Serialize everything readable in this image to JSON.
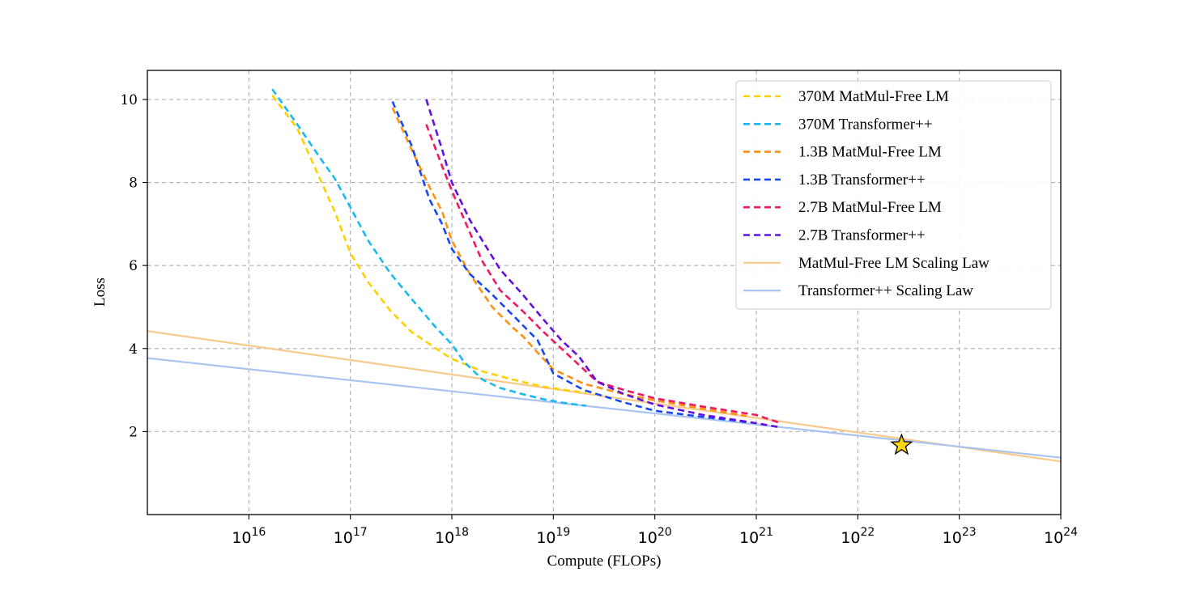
{
  "chart_data": {
    "type": "line",
    "title": "",
    "xlabel": "Compute (FLOPs)",
    "ylabel": "Loss",
    "x_scale": "log",
    "xlim": [
      1000000000000000.0,
      1e+24
    ],
    "ylim": [
      0,
      10.7
    ],
    "grid": true,
    "legend_position": "top-right",
    "x_ticks": [
      {
        "base": "10",
        "exp": "16",
        "value": 1e+16
      },
      {
        "base": "10",
        "exp": "17",
        "value": 1e+17
      },
      {
        "base": "10",
        "exp": "18",
        "value": 1e+18
      },
      {
        "base": "10",
        "exp": "19",
        "value": 1e+19
      },
      {
        "base": "10",
        "exp": "20",
        "value": 1e+20
      },
      {
        "base": "10",
        "exp": "21",
        "value": 1e+21
      },
      {
        "base": "10",
        "exp": "22",
        "value": 1e+22
      },
      {
        "base": "10",
        "exp": "23",
        "value": 1e+23
      },
      {
        "base": "10",
        "exp": "24",
        "value": 1e+24
      }
    ],
    "y_ticks": [
      {
        "label": "2",
        "value": 2
      },
      {
        "label": "4",
        "value": 4
      },
      {
        "label": "6",
        "value": 6
      },
      {
        "label": "8",
        "value": 8
      },
      {
        "label": "10",
        "value": 10
      }
    ],
    "series": [
      {
        "name": "370M MatMul-Free LM",
        "color": "#FFD000",
        "style": "dashed",
        "x": [
          1.7e+16,
          3e+16,
          5e+16,
          7e+16,
          1e+17,
          1.5e+17,
          2.5e+17,
          4e+17,
          7e+17,
          1e+18,
          2e+18,
          4e+18,
          8e+18,
          1.5e+19,
          2.1e+19
        ],
        "y": [
          10.1,
          9.3,
          8.1,
          7.3,
          6.3,
          5.6,
          4.9,
          4.4,
          4.0,
          3.75,
          3.45,
          3.25,
          3.08,
          2.98,
          2.93
        ]
      },
      {
        "name": "370M Transformer++",
        "color": "#1AB8F0",
        "style": "dashed",
        "x": [
          1.7e+16,
          3e+16,
          5e+16,
          7e+16,
          1e+17,
          1.5e+17,
          2.5e+17,
          4e+17,
          7e+17,
          1e+18,
          1.3e+18,
          2e+18,
          3e+18,
          5e+18,
          8e+18,
          1.2e+19,
          2.1e+19
        ],
        "y": [
          10.25,
          9.4,
          8.6,
          8.1,
          7.4,
          6.6,
          5.8,
          5.2,
          4.5,
          4.1,
          3.7,
          3.25,
          3.05,
          2.9,
          2.78,
          2.7,
          2.62
        ]
      },
      {
        "name": "1.3B MatMul-Free LM",
        "color": "#FF9010",
        "style": "dashed",
        "x": [
          2.6e+17,
          4e+17,
          6e+17,
          8e+17,
          1e+18,
          1.5e+18,
          2.5e+18,
          4e+18,
          5e+18,
          7e+18,
          1e+19,
          2e+19,
          5e+19,
          1e+20,
          3e+20,
          7e+20,
          8e+20
        ],
        "y": [
          9.8,
          8.8,
          7.9,
          7.3,
          6.6,
          5.8,
          5.0,
          4.5,
          4.3,
          3.9,
          3.5,
          3.15,
          2.9,
          2.75,
          2.55,
          2.4,
          2.38
        ]
      },
      {
        "name": "1.3B Transformer++",
        "color": "#1848F0",
        "style": "dashed",
        "x": [
          2.6e+17,
          4e+17,
          6e+17,
          8e+17,
          1e+18,
          1.5e+18,
          2.5e+18,
          4e+18,
          7e+18,
          1e+19,
          2e+19,
          5e+19,
          1e+20,
          3e+20,
          7e+20,
          8e+20
        ],
        "y": [
          9.95,
          8.9,
          7.6,
          7.0,
          6.4,
          5.8,
          5.3,
          4.8,
          4.2,
          3.4,
          3.0,
          2.7,
          2.5,
          2.35,
          2.25,
          2.22
        ]
      },
      {
        "name": "2.7B MatMul-Free LM",
        "color": "#F01860",
        "style": "dashed",
        "x": [
          5.6e+17,
          8e+17,
          1e+18,
          1.5e+18,
          2e+18,
          3e+18,
          5e+18,
          8e+18,
          1.2e+19,
          1.8e+19,
          2.7e+19,
          5e+19,
          1e+20,
          3e+20,
          1e+21,
          1.75e+21
        ],
        "y": [
          9.4,
          8.4,
          7.8,
          6.8,
          6.1,
          5.4,
          4.9,
          4.4,
          4.0,
          3.6,
          3.2,
          3.0,
          2.8,
          2.6,
          2.4,
          2.2
        ]
      },
      {
        "name": "2.7B Transformer++",
        "color": "#6010E0",
        "style": "dashed",
        "x": [
          5.6e+17,
          8e+17,
          1e+18,
          1.5e+18,
          2e+18,
          3e+18,
          5e+18,
          8e+18,
          1.2e+19,
          1.8e+19,
          2.7e+19,
          5e+19,
          1e+20,
          3e+20,
          1e+21,
          1.75e+21
        ],
        "y": [
          10.0,
          8.8,
          8.0,
          7.1,
          6.6,
          5.9,
          5.3,
          4.7,
          4.2,
          3.8,
          3.2,
          2.9,
          2.65,
          2.4,
          2.2,
          2.1
        ]
      },
      {
        "name": "MatMul-Free LM Scaling Law",
        "color": "#F9C98B",
        "style": "solid",
        "x": [
          1000000000000000.0,
          1e+24
        ],
        "y": [
          4.42,
          1.28
        ]
      },
      {
        "name": "Transformer++ Scaling Law",
        "color": "#A9C4F0",
        "style": "solid",
        "x": [
          1000000000000000.0,
          1e+24
        ],
        "y": [
          3.77,
          1.37
        ]
      }
    ],
    "annotations": [
      {
        "type": "star",
        "x": 2.7e+22,
        "y": 1.67,
        "color": "#FFD60A"
      }
    ]
  }
}
